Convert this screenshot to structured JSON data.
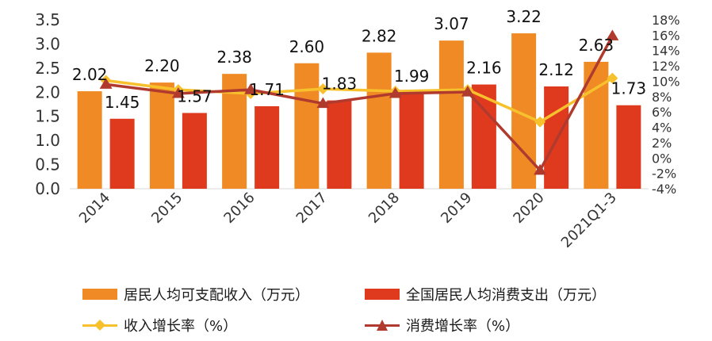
{
  "chart_data": {
    "type": "bar",
    "categories": [
      "2014",
      "2015",
      "2016",
      "2017",
      "2018",
      "2019",
      "2020",
      "2021Q1-3"
    ],
    "series": [
      {
        "name": "居民人均可支配收入（万元）",
        "kind": "bar",
        "axis": "left",
        "color": "#F08A24",
        "values": [
          2.02,
          2.2,
          2.38,
          2.6,
          2.82,
          3.07,
          3.22,
          2.63
        ],
        "labels": [
          "2.02",
          "2.20",
          "2.38",
          "2.60",
          "2.82",
          "3.07",
          "3.22",
          "2.63"
        ]
      },
      {
        "name": "全国居民人均消费支出（万元）",
        "kind": "bar",
        "axis": "left",
        "color": "#E03A1E",
        "values": [
          1.45,
          1.57,
          1.71,
          1.83,
          1.99,
          2.16,
          2.12,
          1.73
        ],
        "labels": [
          "1.45",
          "1.57",
          "1.71",
          "1.83",
          "1.99",
          "2.16",
          "2.12",
          "1.73"
        ]
      },
      {
        "name": "收入增长率（%）",
        "kind": "line",
        "axis": "right",
        "color": "#F7C12D",
        "marker": "diamond",
        "values": [
          10.1,
          8.9,
          8.4,
          9.0,
          8.7,
          8.9,
          4.7,
          10.4
        ]
      },
      {
        "name": "消费增长率（%）",
        "kind": "line",
        "axis": "right",
        "color": "#B03A2E",
        "marker": "triangle",
        "values": [
          9.6,
          8.4,
          8.9,
          7.1,
          8.4,
          8.6,
          -1.6,
          15.9
        ]
      }
    ],
    "y_left": {
      "min": 0,
      "max": 3.5,
      "ticks": [
        "0.0",
        "0.5",
        "1.0",
        "1.5",
        "2.0",
        "2.5",
        "3.0",
        "3.5"
      ]
    },
    "y_right": {
      "min": -4,
      "max": 18,
      "ticks": [
        "-4%",
        "-2%",
        "0%",
        "2%",
        "4%",
        "6%",
        "8%",
        "10%",
        "12%",
        "14%",
        "16%",
        "18%"
      ]
    },
    "grid": false,
    "legend_position": "bottom"
  },
  "legend": {
    "income": "居民人均可支配收入（万元）",
    "consumption": "全国居民人均消费支出（万元）",
    "income_growth": "收入增长率（%）",
    "consumption_growth": "消费增长率（%）"
  }
}
